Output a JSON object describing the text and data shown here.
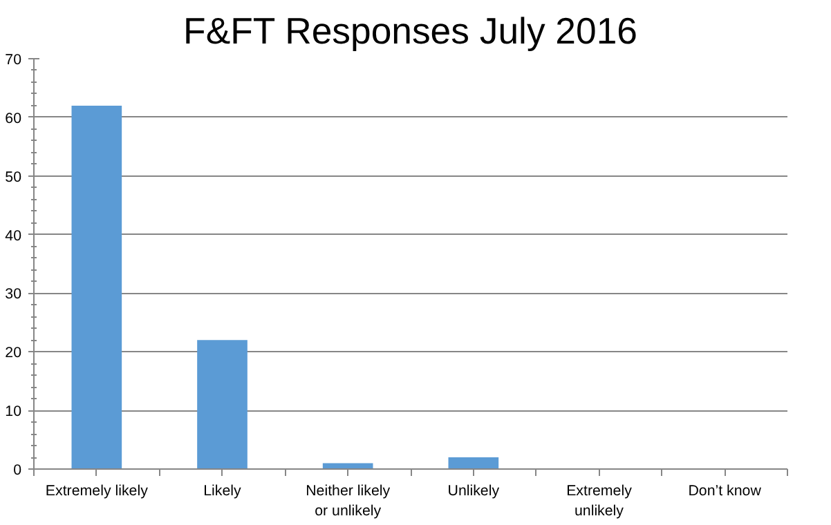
{
  "chart_data": {
    "type": "bar",
    "title": "F&FT Responses July 2016",
    "categories": [
      "Extremely likely",
      "Likely",
      "Neither likely or unlikely",
      "Unlikely",
      "Extremely unlikely",
      "Don’t know"
    ],
    "values": [
      62,
      22,
      1,
      2,
      0,
      0
    ],
    "color": "#5b9bd5",
    "ylim": [
      0,
      70
    ],
    "yticks": [
      0,
      10,
      20,
      30,
      40,
      50,
      60,
      70
    ],
    "grid": "y"
  }
}
